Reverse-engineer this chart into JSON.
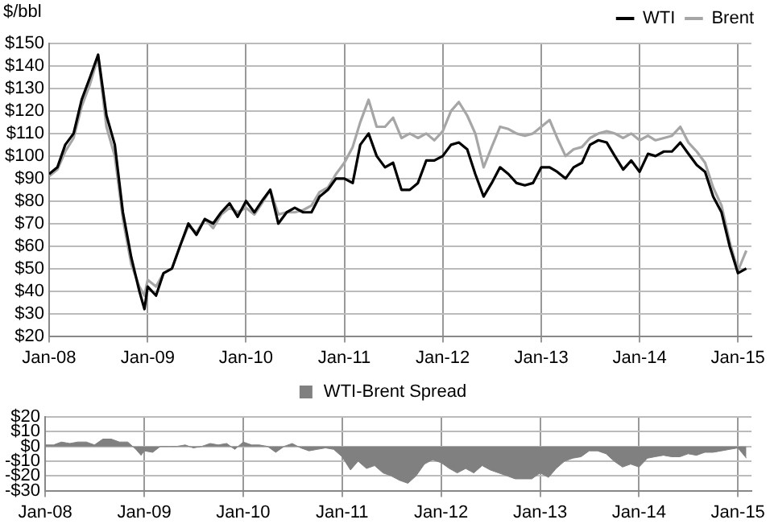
{
  "chart_data": [
    {
      "type": "line",
      "ylabel": "$/bbl",
      "legend": "top right",
      "grid": true,
      "marker": "none",
      "line_style": "solid",
      "x": [
        "2008-01",
        "2008-02",
        "2008-03",
        "2008-04",
        "2008-05",
        "2008-06",
        "2008-07",
        "2008-08",
        "2008-09",
        "2008-10",
        "2008-11",
        "2008-12",
        "2008-12-20",
        "2009-01",
        "2009-02",
        "2009-03",
        "2009-04",
        "2009-05",
        "2009-06",
        "2009-07",
        "2009-08",
        "2009-09",
        "2009-10",
        "2009-11",
        "2009-12",
        "2010-01",
        "2010-02",
        "2010-03",
        "2010-04",
        "2010-05",
        "2010-06",
        "2010-07",
        "2010-08",
        "2010-09",
        "2010-10",
        "2010-11",
        "2010-12",
        "2011-01",
        "2011-02",
        "2011-03",
        "2011-04",
        "2011-05",
        "2011-06",
        "2011-07",
        "2011-08",
        "2011-09",
        "2011-10",
        "2011-11",
        "2011-12",
        "2012-01",
        "2012-02",
        "2012-03",
        "2012-04",
        "2012-05",
        "2012-06",
        "2012-07",
        "2012-08",
        "2012-09",
        "2012-10",
        "2012-11",
        "2012-12",
        "2013-01",
        "2013-02",
        "2013-03",
        "2013-04",
        "2013-05",
        "2013-06",
        "2013-07",
        "2013-08",
        "2013-09",
        "2013-10",
        "2013-11",
        "2013-12",
        "2014-01",
        "2014-02",
        "2014-03",
        "2014-04",
        "2014-05",
        "2014-06",
        "2014-07",
        "2014-08",
        "2014-09",
        "2014-10",
        "2014-11",
        "2014-12",
        "2015-01",
        "2015-02"
      ],
      "series": [
        {
          "name": "WTI",
          "color": "#000000",
          "values": [
            92,
            95,
            105,
            110,
            125,
            135,
            145,
            118,
            105,
            75,
            55,
            40,
            32,
            42,
            38,
            48,
            50,
            60,
            70,
            65,
            72,
            70,
            75,
            79,
            73,
            80,
            75,
            80,
            85,
            70,
            75,
            77,
            75,
            75,
            82,
            85,
            90,
            90,
            88,
            105,
            110,
            100,
            95,
            97,
            85,
            85,
            88,
            98,
            98,
            100,
            105,
            106,
            103,
            92,
            82,
            88,
            95,
            92,
            88,
            87,
            88,
            95,
            95,
            93,
            90,
            95,
            97,
            105,
            107,
            106,
            100,
            94,
            98,
            93,
            101,
            100,
            102,
            102,
            106,
            101,
            96,
            93,
            82,
            75,
            60,
            48,
            50
          ]
        },
        {
          "name": "Brent",
          "color": "#a6a6a6",
          "values": [
            91,
            94,
            102,
            108,
            122,
            132,
            144,
            113,
            100,
            72,
            52,
            42,
            38,
            45,
            42,
            48,
            50,
            60,
            69,
            66,
            72,
            68,
            74,
            77,
            75,
            77,
            74,
            79,
            85,
            74,
            75,
            75,
            76,
            78,
            84,
            86,
            92,
            97,
            104,
            115,
            125,
            113,
            113,
            117,
            108,
            110,
            108,
            110,
            107,
            111,
            120,
            124,
            118,
            110,
            95,
            104,
            113,
            112,
            110,
            109,
            110,
            113,
            116,
            108,
            100,
            103,
            104,
            108,
            110,
            111,
            110,
            108,
            110,
            107,
            109,
            107,
            108,
            109,
            113,
            106,
            102,
            97,
            86,
            78,
            62,
            49,
            58
          ]
        }
      ],
      "xlim": [
        "2008-01-01",
        "2015-02-20"
      ],
      "xticks": [
        {
          "value": "2008-01-01",
          "label": "Jan-08"
        },
        {
          "value": "2009-01-01",
          "label": "Jan-09"
        },
        {
          "value": "2010-01-01",
          "label": "Jan-10"
        },
        {
          "value": "2011-01-01",
          "label": "Jan-11"
        },
        {
          "value": "2012-01-01",
          "label": "Jan-12"
        },
        {
          "value": "2013-01-01",
          "label": "Jan-13"
        },
        {
          "value": "2014-01-01",
          "label": "Jan-14"
        },
        {
          "value": "2015-01-01",
          "label": "Jan-15"
        }
      ],
      "ylim": [
        20,
        150
      ],
      "yticks": [
        {
          "value": 20,
          "label": "$20"
        },
        {
          "value": 30,
          "label": "$30"
        },
        {
          "value": 40,
          "label": "$40"
        },
        {
          "value": 50,
          "label": "$50"
        },
        {
          "value": 60,
          "label": "$60"
        },
        {
          "value": 70,
          "label": "$70"
        },
        {
          "value": 80,
          "label": "$80"
        },
        {
          "value": 90,
          "label": "$90"
        },
        {
          "value": 100,
          "label": "$100"
        },
        {
          "value": 110,
          "label": "$110"
        },
        {
          "value": 120,
          "label": "$120"
        },
        {
          "value": 130,
          "label": "$130"
        },
        {
          "value": 140,
          "label": "$140"
        },
        {
          "value": 150,
          "label": "$150"
        }
      ]
    },
    {
      "type": "area",
      "legend": "top",
      "grid": true,
      "x": [
        "2008-01",
        "2008-02",
        "2008-03",
        "2008-04",
        "2008-05",
        "2008-06",
        "2008-07",
        "2008-08",
        "2008-09",
        "2008-10",
        "2008-11",
        "2008-12",
        "2008-12-20",
        "2009-01",
        "2009-02",
        "2009-03",
        "2009-04",
        "2009-05",
        "2009-06",
        "2009-07",
        "2009-08",
        "2009-09",
        "2009-10",
        "2009-11",
        "2009-12",
        "2010-01",
        "2010-02",
        "2010-03",
        "2010-04",
        "2010-05",
        "2010-06",
        "2010-07",
        "2010-08",
        "2010-09",
        "2010-10",
        "2010-11",
        "2010-12",
        "2011-01",
        "2011-02",
        "2011-03",
        "2011-04",
        "2011-05",
        "2011-06",
        "2011-07",
        "2011-08",
        "2011-09",
        "2011-10",
        "2011-11",
        "2011-12",
        "2012-01",
        "2012-02",
        "2012-03",
        "2012-04",
        "2012-05",
        "2012-06",
        "2012-07",
        "2012-08",
        "2012-09",
        "2012-10",
        "2012-11",
        "2012-12",
        "2013-01",
        "2013-02",
        "2013-03",
        "2013-04",
        "2013-05",
        "2013-06",
        "2013-07",
        "2013-08",
        "2013-09",
        "2013-10",
        "2013-11",
        "2013-12",
        "2014-01",
        "2014-02",
        "2014-03",
        "2014-04",
        "2014-05",
        "2014-06",
        "2014-07",
        "2014-08",
        "2014-09",
        "2014-10",
        "2014-11",
        "2014-12",
        "2015-01",
        "2015-02"
      ],
      "series": [
        {
          "name": "WTI-Brent Spread",
          "color": "#808080",
          "values": [
            1,
            1,
            3,
            2,
            3,
            3,
            1,
            5,
            5,
            3,
            3,
            -2,
            -6,
            -3,
            -4,
            0,
            0,
            0,
            1,
            -1,
            0,
            2,
            1,
            2,
            -2,
            3,
            1,
            1,
            0,
            -4,
            0,
            2,
            -1,
            -3,
            -2,
            -1,
            -2,
            -7,
            -16,
            -10,
            -15,
            -13,
            -18,
            -20,
            -23,
            -25,
            -20,
            -12,
            -9,
            -11,
            -15,
            -18,
            -15,
            -18,
            -13,
            -16,
            -18,
            -20,
            -22,
            -22,
            -22,
            -18,
            -21,
            -15,
            -10,
            -8,
            -7,
            -3,
            -3,
            -5,
            -10,
            -14,
            -12,
            -14,
            -8,
            -7,
            -6,
            -7,
            -7,
            -5,
            -6,
            -4,
            -4,
            -3,
            -2,
            -1,
            -8
          ]
        }
      ],
      "xlim": [
        "2008-01-01",
        "2015-02-20"
      ],
      "xticks": [
        {
          "value": "2008-01-01",
          "label": "Jan-08"
        },
        {
          "value": "2009-01-01",
          "label": "Jan-09"
        },
        {
          "value": "2010-01-01",
          "label": "Jan-10"
        },
        {
          "value": "2011-01-01",
          "label": "Jan-11"
        },
        {
          "value": "2012-01-01",
          "label": "Jan-12"
        },
        {
          "value": "2013-01-01",
          "label": "Jan-13"
        },
        {
          "value": "2014-01-01",
          "label": "Jan-14"
        },
        {
          "value": "2015-01-01",
          "label": "Jan-15"
        }
      ],
      "ylim": [
        -30,
        20
      ],
      "yticks": [
        {
          "value": -30,
          "label": "-$30"
        },
        {
          "value": -20,
          "label": "-$20"
        },
        {
          "value": -10,
          "label": "-$10"
        },
        {
          "value": 0,
          "label": "$0"
        },
        {
          "value": 10,
          "label": "$10"
        },
        {
          "value": 20,
          "label": "$20"
        }
      ]
    }
  ]
}
